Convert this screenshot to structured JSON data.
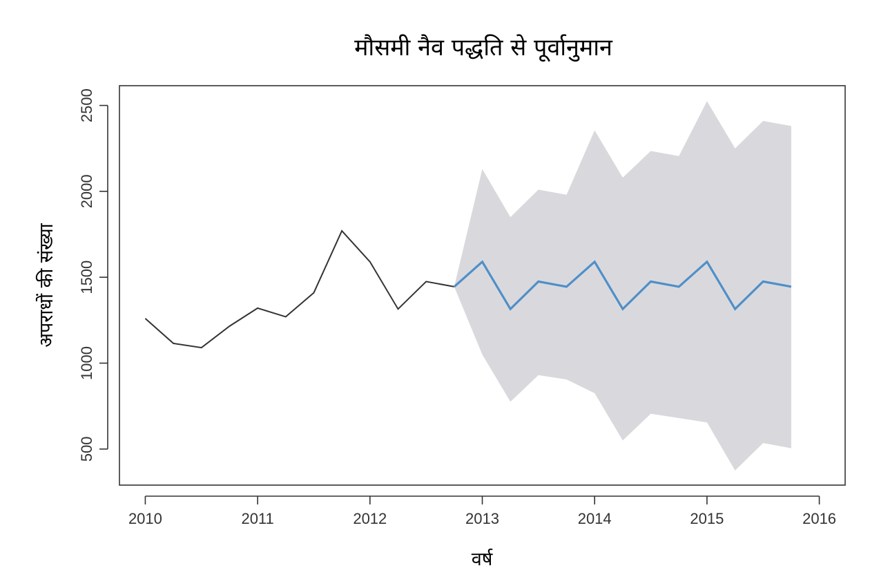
{
  "chart_data": {
    "type": "line",
    "title": "मौसमी नैव पद्धति से पूर्वानुमान",
    "xlabel": "वर्ष",
    "ylabel": "अपराधों की संख्या",
    "xlim": [
      2009.77,
      2016.23
    ],
    "ylim": [
      290,
      2615
    ],
    "x_ticks": [
      2010,
      2011,
      2012,
      2013,
      2014,
      2015,
      2016
    ],
    "y_ticks": [
      500,
      1000,
      1500,
      2000,
      2500
    ],
    "grid": false,
    "series": [
      {
        "role": "observed",
        "color": "#333333",
        "x": [
          2010.0,
          2010.25,
          2010.5,
          2010.75,
          2011.0,
          2011.25,
          2011.5,
          2011.75,
          2012.0,
          2012.25,
          2012.5,
          2012.75
        ],
        "y": [
          1260,
          1115,
          1090,
          1215,
          1320,
          1270,
          1410,
          1770,
          1590,
          1315,
          1475,
          1445
        ]
      },
      {
        "role": "forecast",
        "color": "#4f8fc9",
        "x": [
          2012.75,
          2013.0,
          2013.25,
          2013.5,
          2013.75,
          2014.0,
          2014.25,
          2014.5,
          2014.75,
          2015.0,
          2015.25,
          2015.5,
          2015.75
        ],
        "y": [
          1445,
          1590,
          1315,
          1475,
          1445,
          1590,
          1315,
          1475,
          1445,
          1590,
          1315,
          1475,
          1445
        ]
      }
    ],
    "interval": {
      "color": "#d9d9dd",
      "x": [
        2012.75,
        2013.0,
        2013.25,
        2013.5,
        2013.75,
        2014.0,
        2014.25,
        2014.5,
        2014.75,
        2015.0,
        2015.25,
        2015.5,
        2015.75
      ],
      "upper": [
        1445,
        2130,
        1850,
        2010,
        1980,
        2355,
        2080,
        2235,
        2205,
        2525,
        2250,
        2410,
        2380
      ],
      "lower": [
        1445,
        1050,
        775,
        930,
        905,
        825,
        550,
        705,
        680,
        655,
        375,
        535,
        505
      ]
    }
  }
}
